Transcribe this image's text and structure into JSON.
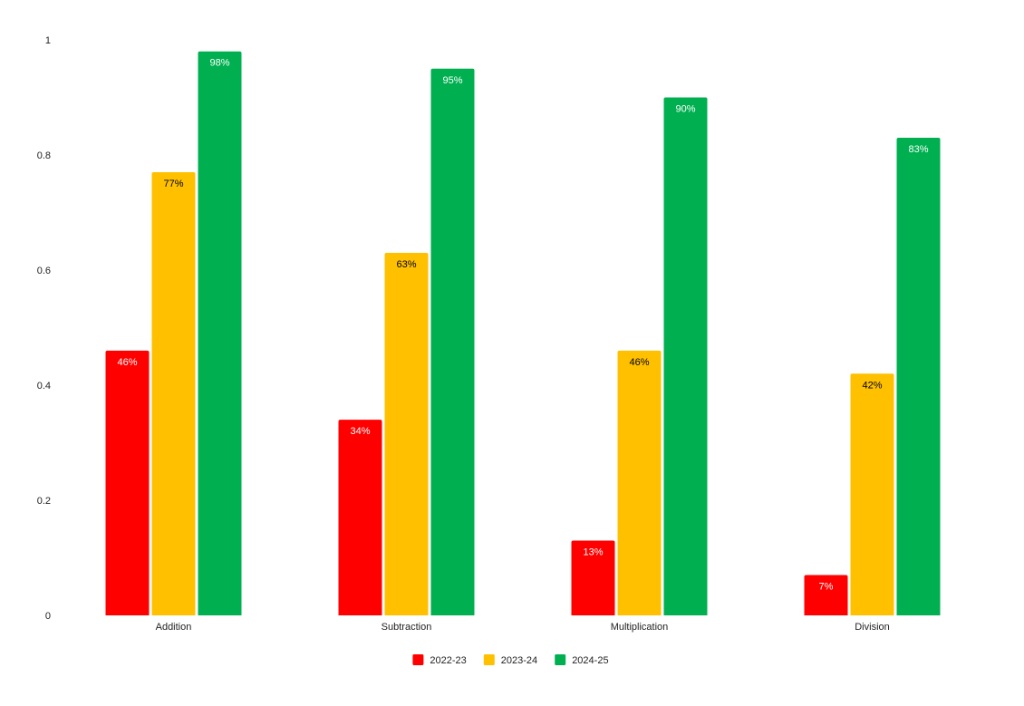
{
  "chart_data": {
    "type": "bar",
    "title": "",
    "xlabel": "",
    "ylabel": "",
    "categories": [
      "Addition",
      "Subtraction",
      "Multiplication",
      "Division"
    ],
    "ylim": [
      0,
      1
    ],
    "yticks": [
      0,
      0.2,
      0.4,
      0.6,
      0.8,
      1
    ],
    "ytick_labels": [
      "0",
      "0.2",
      "0.4",
      "0.6",
      "0.8",
      "1"
    ],
    "grid": true,
    "legend_position": "bottom",
    "series": [
      {
        "name": "2022-23",
        "color": "#ff0000",
        "label_color": "#ffffff",
        "values": [
          0.46,
          0.34,
          0.13,
          0.07
        ],
        "labels": [
          "46%",
          "34%",
          "13%",
          "7%"
        ]
      },
      {
        "name": "2023-24",
        "color": "#ffc000",
        "label_color": "#000000",
        "values": [
          0.77,
          0.63,
          0.46,
          0.42
        ],
        "labels": [
          "77%",
          "63%",
          "46%",
          "42%"
        ]
      },
      {
        "name": "2024-25",
        "color": "#00b050",
        "label_color": "#ffffff",
        "values": [
          0.98,
          0.95,
          0.9,
          0.83
        ],
        "labels": [
          "98%",
          "95%",
          "90%",
          "83%"
        ]
      }
    ]
  }
}
